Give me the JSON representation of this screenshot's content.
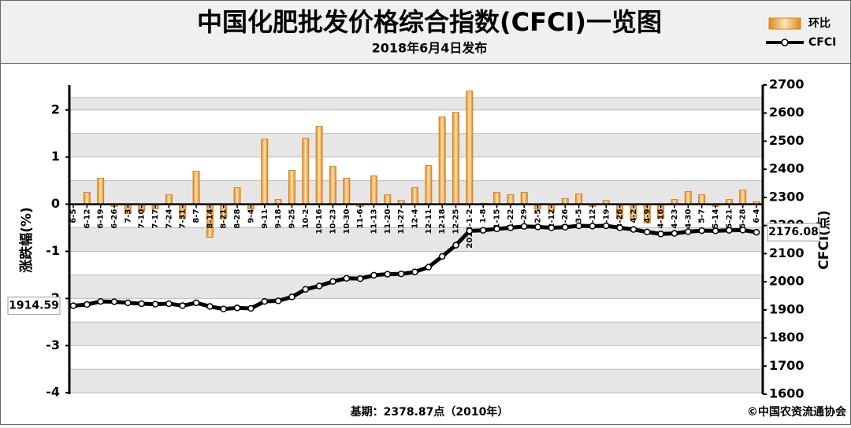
{
  "chart_data": {
    "type": "bar-line",
    "title": "中国化肥批发价格综合指数(CFCI)一览图",
    "subtitle": "2018年6月4日发布",
    "y_label": "涨跌幅(%)",
    "y2_label": "CFCI(点)",
    "footnote": "基期：2378.87点（2010年）",
    "credit": "©中国农资流通协会",
    "categories": [
      "6-5",
      "6-12",
      "6-19",
      "6-26",
      "7-3",
      "7-10",
      "7-17",
      "7-24",
      "7-31",
      "8-7",
      "8-14",
      "8-21",
      "8-28",
      "9-4",
      "9-11",
      "9-18",
      "9-25",
      "10-2",
      "10-16",
      "10-23",
      "10-30",
      "11-6",
      "11-13",
      "11-20",
      "11-27",
      "12-4",
      "12-11",
      "12-18",
      "12-25",
      "2018-1-2",
      "1-8",
      "1-15",
      "1-22",
      "1-29",
      "2-5",
      "2-12",
      "2-26",
      "3-5",
      "3-12",
      "3-19",
      "3-26",
      "4-2",
      "4-9",
      "4-16",
      "4-23",
      "4-30",
      "5-7",
      "5-14",
      "5-21",
      "5-28",
      "6-4"
    ],
    "series": [
      {
        "name": "环比",
        "type": "bar",
        "color": "#f3c27a",
        "values": [
          0,
          0.25,
          0.55,
          -0.05,
          -0.2,
          -0.15,
          -0.1,
          0.2,
          -0.3,
          0.7,
          -0.7,
          -0.3,
          0.35,
          -0.1,
          1.38,
          0.1,
          0.72,
          1.4,
          1.65,
          0.8,
          0.55,
          -0.05,
          0.6,
          0.2,
          0.08,
          0.35,
          0.82,
          1.85,
          1.95,
          2.4,
          0.02,
          0.25,
          0.2,
          0.25,
          -0.1,
          -0.15,
          0.12,
          0.22,
          -0.05,
          0.08,
          -0.3,
          -0.3,
          -0.4,
          -0.3,
          0.1,
          0.27,
          0.2,
          -0.05,
          0.1,
          0.3,
          0.05
        ]
      },
      {
        "name": "CFCI",
        "type": "line",
        "axis": "y2",
        "color": "#000000",
        "values": [
          1914.59,
          1919,
          1930,
          1929,
          1925,
          1922,
          1920,
          1922,
          1915,
          1925,
          1912,
          1903,
          1907,
          1905,
          1930,
          1932,
          1946,
          1973,
          1985,
          2001,
          2012,
          2011,
          2023,
          2027,
          2028,
          2035,
          2052,
          2090,
          2130,
          2181,
          2183,
          2188,
          2192,
          2197,
          2195,
          2192,
          2194,
          2199,
          2198,
          2199,
          2192,
          2186,
          2177,
          2170,
          2172,
          2178,
          2182,
          2181,
          2183,
          2184,
          2176.08
        ],
        "value_labels": [
          "1914.59",
          null,
          null,
          null,
          null,
          null,
          null,
          null,
          null,
          null,
          null,
          null,
          null,
          null,
          null,
          null,
          null,
          null,
          null,
          null,
          null,
          null,
          null,
          null,
          null,
          null,
          null,
          null,
          null,
          null,
          null,
          null,
          null,
          null,
          null,
          null,
          null,
          null,
          null,
          null,
          null,
          null,
          null,
          null,
          null,
          null,
          null,
          null,
          null,
          null,
          "2176.08"
        ]
      }
    ],
    "ylim": [
      -4.03,
      2.53
    ],
    "yticks": [
      -4,
      -3,
      -2,
      -1,
      0,
      1,
      2
    ],
    "y2lim": [
      1600,
      2700
    ],
    "y2ticks": [
      1600,
      1700,
      1800,
      1900,
      2000,
      2100,
      2200,
      2300,
      2400,
      2500,
      2600,
      2700
    ],
    "grid": true
  }
}
